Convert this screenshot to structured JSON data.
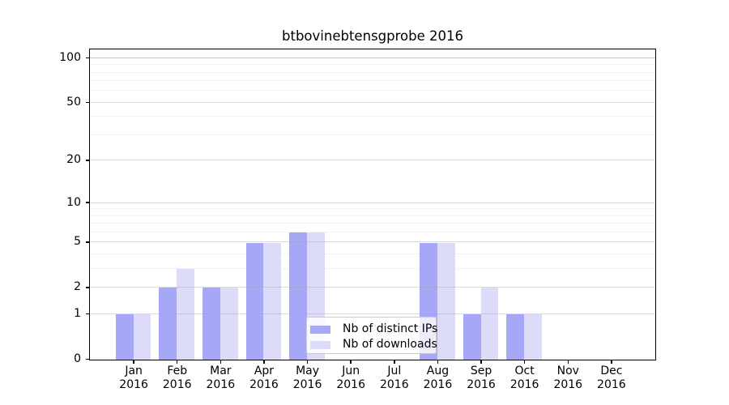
{
  "title": "btbovinebtensgprobe 2016",
  "chart_data": {
    "type": "bar",
    "title": "btbovinebtensgprobe 2016",
    "categories": [
      "Jan 2016",
      "Feb 2016",
      "Mar 2016",
      "Apr 2016",
      "May 2016",
      "Jun 2016",
      "Jul 2016",
      "Aug 2016",
      "Sep 2016",
      "Oct 2016",
      "Nov 2016",
      "Dec 2016"
    ],
    "series": [
      {
        "name": "Nb of distinct IPs",
        "color": "#a7a7f8",
        "values": [
          1,
          2,
          2,
          5,
          6,
          0,
          0,
          5,
          1,
          1,
          0,
          0
        ]
      },
      {
        "name": "Nb of downloads",
        "color": "#dcdcf8",
        "values": [
          1,
          3,
          2,
          5,
          6,
          0,
          0,
          5,
          2,
          1,
          0,
          0
        ]
      }
    ],
    "xlabel": "",
    "ylabel": "",
    "yscale": "log1p",
    "ylim": [
      0,
      113
    ],
    "yticks": [
      0,
      1,
      2,
      5,
      10,
      20,
      50,
      100
    ],
    "minor_yticks": [
      3,
      4,
      6,
      7,
      8,
      9,
      30,
      40,
      60,
      70,
      80,
      90
    ],
    "grid": "horizontal",
    "legend_position": "lower-center-inside"
  },
  "colors": {
    "bar_dark": "#a7a7f8",
    "bar_light": "#dcdcf8",
    "grid_major": "#dddddd",
    "grid_minor": "#f2f2f2",
    "grid_100": "#c6c6c6",
    "spine": "#000000",
    "legend_border": "#cccccc"
  }
}
